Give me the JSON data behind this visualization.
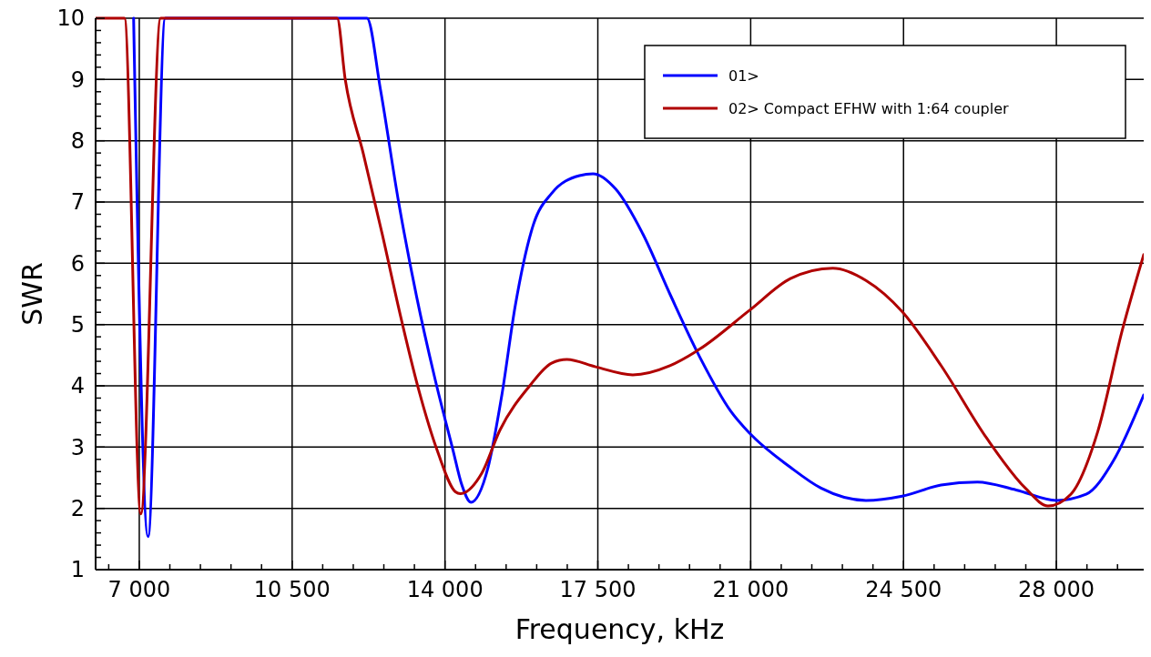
{
  "chart_data": {
    "type": "line",
    "xlabel": "Frequency, kHz",
    "ylabel": "SWR",
    "xlim": [
      6000,
      30000
    ],
    "ylim": [
      1,
      10
    ],
    "xticks": [
      {
        "value": 6300,
        "label": null
      },
      {
        "value": 7000,
        "label": "7 000"
      },
      {
        "value": 7700,
        "label": null
      },
      {
        "value": 8400,
        "label": null
      },
      {
        "value": 9100,
        "label": null
      },
      {
        "value": 9800,
        "label": null
      },
      {
        "value": 10500,
        "label": "10 500"
      },
      {
        "value": 11200,
        "label": null
      },
      {
        "value": 11900,
        "label": null
      },
      {
        "value": 12600,
        "label": null
      },
      {
        "value": 13300,
        "label": null
      },
      {
        "value": 14000,
        "label": "14 000"
      },
      {
        "value": 14700,
        "label": null
      },
      {
        "value": 15400,
        "label": null
      },
      {
        "value": 16100,
        "label": null
      },
      {
        "value": 16800,
        "label": null
      },
      {
        "value": 17500,
        "label": "17 500"
      },
      {
        "value": 18200,
        "label": null
      },
      {
        "value": 18900,
        "label": null
      },
      {
        "value": 19600,
        "label": null
      },
      {
        "value": 20300,
        "label": null
      },
      {
        "value": 21000,
        "label": "21 000"
      },
      {
        "value": 21700,
        "label": null
      },
      {
        "value": 22400,
        "label": null
      },
      {
        "value": 23100,
        "label": null
      },
      {
        "value": 23800,
        "label": null
      },
      {
        "value": 24500,
        "label": "24 500"
      },
      {
        "value": 25200,
        "label": null
      },
      {
        "value": 25900,
        "label": null
      },
      {
        "value": 26600,
        "label": null
      },
      {
        "value": 27300,
        "label": null
      },
      {
        "value": 28000,
        "label": "28 000"
      },
      {
        "value": 28700,
        "label": null
      },
      {
        "value": 29400,
        "label": null
      }
    ],
    "yticks": [
      1,
      {
        "value": 1.2,
        "label": null
      },
      {
        "value": 1.4,
        "label": null
      },
      {
        "value": 1.6,
        "label": null
      },
      {
        "value": 1.8,
        "label": null
      },
      2,
      {
        "value": 2.2,
        "label": null
      },
      {
        "value": 2.4,
        "label": null
      },
      {
        "value": 2.6,
        "label": null
      },
      {
        "value": 2.8,
        "label": null
      },
      3,
      {
        "value": 3.2,
        "label": null
      },
      {
        "value": 3.4,
        "label": null
      },
      {
        "value": 3.6,
        "label": null
      },
      {
        "value": 3.8,
        "label": null
      },
      4,
      {
        "value": 4.2,
        "label": null
      },
      {
        "value": 4.4,
        "label": null
      },
      {
        "value": 4.6,
        "label": null
      },
      {
        "value": 4.8,
        "label": null
      },
      5,
      {
        "value": 5.2,
        "label": null
      },
      {
        "value": 5.4,
        "label": null
      },
      {
        "value": 5.6,
        "label": null
      },
      {
        "value": 5.8,
        "label": null
      },
      6,
      {
        "value": 6.2,
        "label": null
      },
      {
        "value": 6.4,
        "label": null
      },
      {
        "value": 6.6,
        "label": null
      },
      {
        "value": 6.8,
        "label": null
      },
      7,
      {
        "value": 7.2,
        "label": null
      },
      {
        "value": 7.4,
        "label": null
      },
      {
        "value": 7.6,
        "label": null
      },
      {
        "value": 7.8,
        "label": null
      },
      8,
      {
        "value": 8.2,
        "label": null
      },
      {
        "value": 8.4,
        "label": null
      },
      {
        "value": 8.6,
        "label": null
      },
      {
        "value": 8.8,
        "label": null
      },
      9,
      {
        "value": 9.2,
        "label": null
      },
      {
        "value": 9.4,
        "label": null
      },
      {
        "value": 9.6,
        "label": null
      },
      {
        "value": 9.8,
        "label": null
      },
      10
    ],
    "grid": true,
    "legend": "top right",
    "line_style": "solid",
    "series": [
      {
        "name": "01>",
        "color": "#0000ff",
        "x": [
          6870,
          7201,
          7595,
          12213,
          12524,
          12938,
          13352,
          13766,
          14180,
          14387,
          14594,
          14987,
          15300,
          15610,
          16024,
          16440,
          17080,
          17390,
          17910,
          18530,
          19150,
          19834,
          20540,
          20970,
          21910,
          22610,
          23640,
          24470,
          25360,
          26190,
          27080,
          28000,
          28680,
          29300,
          30000
        ],
        "values": [
          10,
          1.54,
          10,
          10,
          8.83,
          7.0,
          5.45,
          4.13,
          2.96,
          2.38,
          2.1,
          2.67,
          3.84,
          5.31,
          6.63,
          7.14,
          7.43,
          7.46,
          7.21,
          6.48,
          5.5,
          4.47,
          3.59,
          3.23,
          2.67,
          2.33,
          2.13,
          2.2,
          2.38,
          2.43,
          2.3,
          2.13,
          2.23,
          2.77,
          3.85
        ]
      },
      {
        "name": "02> Compact EFHW with 1:64 coupler",
        "color": "#b00000",
        "x": [
          6000,
          6660,
          7035,
          7490,
          11530,
          11716,
          12130,
          12565,
          12979,
          13393,
          13830,
          14240,
          14350,
          14840,
          15260,
          15940,
          16440,
          16790,
          17450,
          18300,
          19150,
          19834,
          20970,
          21910,
          22880,
          23640,
          24470,
          25360,
          26400,
          27290,
          27810,
          28330,
          28950,
          29510,
          30000
        ],
        "values": [
          10,
          10,
          1.91,
          10,
          10,
          9.0,
          7.79,
          6.47,
          5.15,
          3.95,
          2.93,
          2.27,
          2.24,
          2.57,
          3.28,
          4.0,
          4.37,
          4.43,
          4.31,
          4.18,
          4.33,
          4.6,
          5.23,
          5.75,
          5.92,
          5.72,
          5.21,
          4.33,
          3.15,
          2.33,
          2.04,
          2.23,
          3.26,
          4.91,
          6.14
        ]
      }
    ]
  }
}
